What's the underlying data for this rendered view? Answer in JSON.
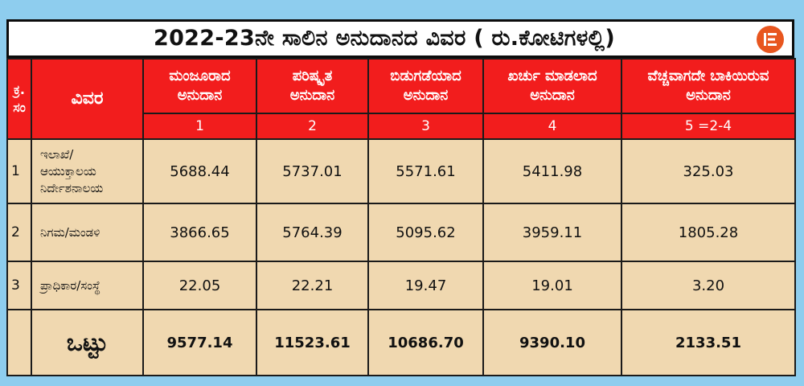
{
  "title": "2022-23ನೇ ಸಾಲಿನ ಅನುದಾನದ ವಿವರ ( ರು.ಕೋಟಿಗಳಲ್ಲಿ)",
  "brand_icon": "document-lines-icon",
  "colors": {
    "header_red": "#f21d1d",
    "body_beige": "#f0d8b0",
    "logo_orange": "#e8561f",
    "background": "#8ecdee"
  },
  "headers": {
    "serial_line1": "ಕ್ರ.",
    "serial_line2": "ಸಂ",
    "detail": "ವಿವರ",
    "col1_line1": "ಮಂಜೂರಾದ",
    "col1_line2": "ಅನುದಾನ",
    "col2_line1": "ಪರಿಷ್ಕೃತ",
    "col2_line2": "ಅನುದಾನ",
    "col3_line1": "ಬಿಡುಗಡೆಯಾದ",
    "col3_line2": "ಅನುದಾನ",
    "col4_line1": "ಖರ್ಚು ಮಾಡಲಾದ",
    "col4_line2": "ಅನುದಾನ",
    "col5_line1": "ವೆಚ್ಚವಾಗದೇ ಬಾಕಿಯಿರುವ",
    "col5_line2": "ಅನುದಾನ"
  },
  "column_numbers": [
    "1",
    "2",
    "3",
    "4",
    "5 =2-4"
  ],
  "rows": [
    {
      "serial": "1",
      "label_lines": [
        "ಇಲಾಖೆ/",
        "ಆಯುಕ್ತಾಲಯ",
        "ನಿರ್ದೇಶನಾಲಯ"
      ],
      "values": [
        "5688.44",
        "5737.01",
        "5571.61",
        "5411.98",
        "325.03"
      ]
    },
    {
      "serial": "2",
      "label_lines": [
        "ನಿಗಮ/ಮಂಡಳಿ"
      ],
      "values": [
        "3866.65",
        "5764.39",
        "5095.62",
        "3959.11",
        "1805.28"
      ]
    },
    {
      "serial": "3",
      "label_lines": [
        "ಪ್ರಾಧಿಕಾರ/ಸಂಸ್ಥೆ"
      ],
      "values": [
        "22.05",
        "22.21",
        "19.47",
        "19.01",
        "3.20"
      ]
    }
  ],
  "total": {
    "label": "ಒಟ್ಟು",
    "values": [
      "9577.14",
      "11523.61",
      "10686.70",
      "9390.10",
      "2133.51"
    ]
  }
}
